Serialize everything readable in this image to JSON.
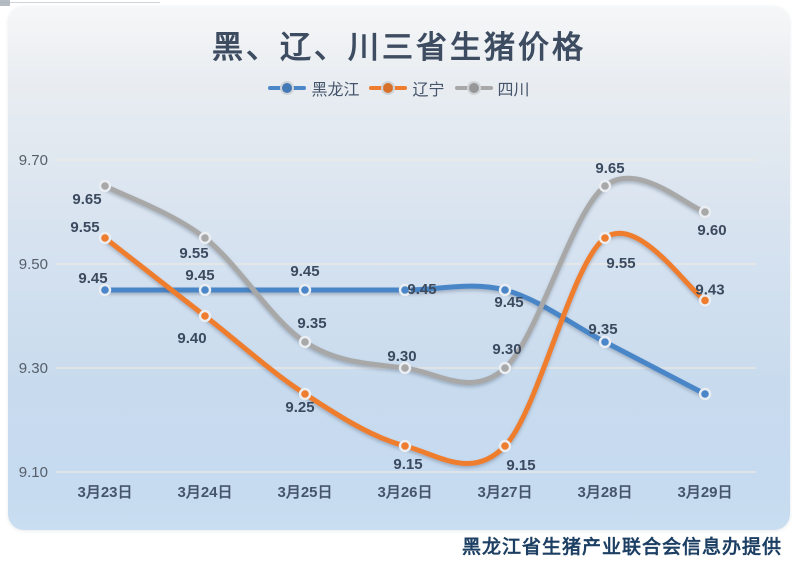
{
  "title": "黑、辽、川三省生猪价格",
  "source_note": "黑龙江省生猪产业联合会信息办提供",
  "chart_data": {
    "type": "line",
    "smooth": true,
    "title": "黑、辽、川三省生猪价格",
    "categories": [
      "3月23日",
      "3月24日",
      "3月25日",
      "3月26日",
      "3月27日",
      "3月28日",
      "3月29日"
    ],
    "series": [
      {
        "name": "黑龙江",
        "color": "#4a86c8",
        "values": [
          9.45,
          9.45,
          9.45,
          9.45,
          9.45,
          9.35,
          9.25
        ],
        "point_labels": [
          "9.45",
          "9.45",
          "9.45",
          "9.45",
          "9.45",
          "9.35",
          null
        ],
        "label_offsets": [
          [
            -12,
            -12
          ],
          [
            -5,
            -15
          ],
          [
            0,
            -19
          ],
          [
            17,
            -1
          ],
          [
            4,
            12
          ],
          [
            -2,
            -13
          ],
          [
            0,
            0
          ]
        ]
      },
      {
        "name": "辽宁",
        "color": "#ee7d2f",
        "values": [
          9.55,
          9.4,
          9.25,
          9.15,
          9.15,
          9.55,
          9.43
        ],
        "point_labels": [
          "9.55",
          "9.40",
          "9.25",
          "9.15",
          "9.15",
          "9.55",
          "9.43"
        ],
        "label_offsets": [
          [
            -20,
            -11
          ],
          [
            -13,
            22
          ],
          [
            -5,
            13
          ],
          [
            3,
            18
          ],
          [
            16,
            19
          ],
          [
            16,
            25
          ],
          [
            5,
            -11
          ]
        ]
      },
      {
        "name": "四川",
        "color": "#a8a8a8",
        "values": [
          9.65,
          9.55,
          9.35,
          9.3,
          9.3,
          9.65,
          9.6
        ],
        "point_labels": [
          "9.65",
          "9.55",
          "9.35",
          "9.30",
          "9.30",
          "9.65",
          "9.60"
        ],
        "label_offsets": [
          [
            -18,
            13
          ],
          [
            -11,
            15
          ],
          [
            7,
            -19
          ],
          [
            -3,
            -12
          ],
          [
            2,
            -19
          ],
          [
            5,
            -18
          ],
          [
            7,
            18
          ]
        ]
      }
    ],
    "ylim": [
      9.1,
      9.7
    ],
    "yticks": [
      9.7,
      9.5,
      9.3,
      9.1
    ],
    "grid": true,
    "legend_position": "top-center"
  }
}
